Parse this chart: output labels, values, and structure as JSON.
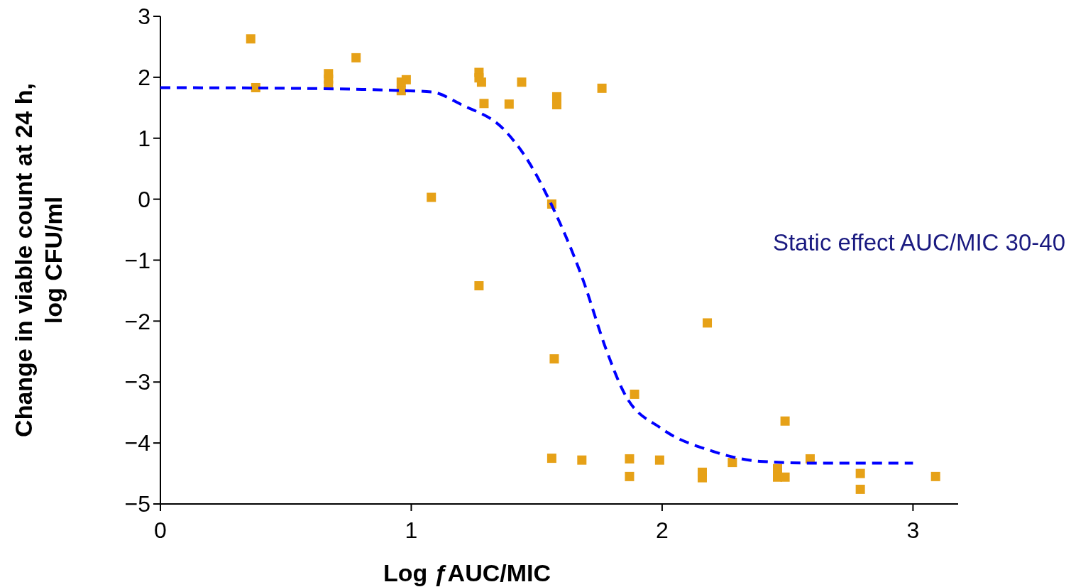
{
  "chart_data": {
    "type": "scatter",
    "xlabel": "Log ƒAUC/MIC",
    "ylabel": "Change in viable count at 24 h, log CFU/ml",
    "xlim": [
      0,
      3.18
    ],
    "xticks": [
      0,
      1,
      2,
      3
    ],
    "ylim": [
      -5,
      3
    ],
    "yticks": [
      {
        "value": -5,
        "label": "−5"
      },
      {
        "value": -4,
        "label": "−4"
      },
      {
        "value": -3,
        "label": "−3"
      },
      {
        "value": -2,
        "label": "−2"
      },
      {
        "value": -1,
        "label": "−1"
      },
      0,
      1,
      2,
      3
    ],
    "grid": false,
    "annotations": [
      "Static effect AUC/MIC 30-40"
    ],
    "series": [
      {
        "marker": "square",
        "color": "#e6a117",
        "x": [
          0.36,
          0.38,
          0.67,
          0.67,
          0.67,
          0.78,
          0.96,
          0.96,
          0.98,
          1.08,
          1.27,
          1.27,
          1.28,
          1.29,
          1.27,
          1.39,
          1.44,
          1.58,
          1.58,
          1.56,
          1.57,
          1.56,
          1.68,
          1.76,
          1.87,
          1.87,
          1.89,
          1.99,
          2.16,
          2.16,
          2.18,
          2.28,
          2.46,
          2.46,
          2.49,
          2.49,
          2.59,
          2.79,
          2.79,
          3.09
        ],
        "values": [
          2.63,
          1.83,
          2.06,
          1.97,
          1.87,
          2.32,
          1.92,
          1.78,
          1.96,
          0.03,
          2.08,
          1.99,
          1.92,
          1.57,
          -1.42,
          1.56,
          1.92,
          1.68,
          1.55,
          -0.08,
          -2.62,
          -4.25,
          -4.28,
          1.82,
          -4.26,
          -4.55,
          -3.2,
          -4.28,
          -4.48,
          -4.57,
          -2.03,
          -4.32,
          -4.42,
          -4.56,
          -3.64,
          -4.56,
          -4.26,
          -4.5,
          -4.76,
          -4.55
        ]
      },
      {
        "type": "line",
        "marker": "none",
        "line_style": "dashed",
        "color": "#0000ff",
        "x": [
          0,
          0.5,
          0.9,
          1.08,
          1.2,
          1.37,
          1.47,
          1.56,
          1.68,
          1.78,
          1.85,
          2.0,
          2.19,
          2.39,
          2.6,
          3.0
        ],
        "values": [
          1.83,
          1.82,
          1.79,
          1.76,
          1.55,
          1.14,
          0.6,
          -0.1,
          -1.27,
          -2.5,
          -3.19,
          -3.77,
          -4.12,
          -4.3,
          -4.33,
          -4.33
        ]
      }
    ]
  }
}
